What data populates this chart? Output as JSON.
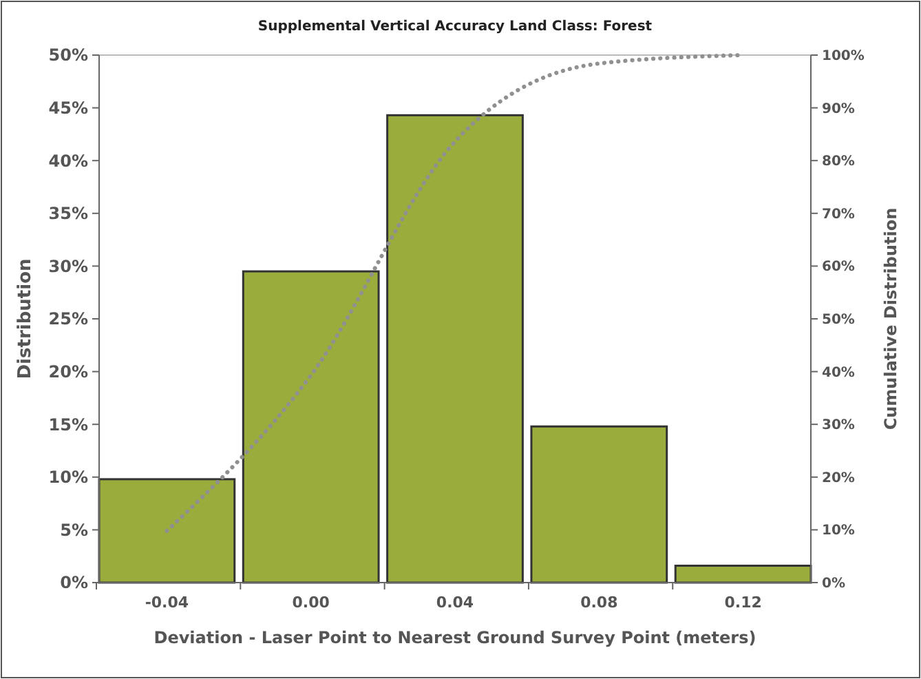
{
  "chart_data": {
    "type": "bar",
    "title": "Supplemental Vertical Accuracy Land Class: Forest",
    "xlabel": "Deviation - Laser Point to Nearest Ground Survey Point (meters)",
    "ylabel": "Distribution",
    "y2label": "Cumulative Distribution",
    "categories": [
      "-0.04",
      "0.00",
      "0.04",
      "0.08",
      "0.12"
    ],
    "series": [
      {
        "color": "#9aac3c",
        "values": [
          9.8,
          29.5,
          44.3,
          14.8,
          1.6
        ]
      },
      {
        "type": "line",
        "axis": "y2",
        "color": "#909090",
        "line_style": "dotted",
        "marker": "none",
        "values": [
          9.8,
          39.3,
          83.6,
          98.4,
          100
        ]
      }
    ],
    "ylim": [
      0,
      50
    ],
    "yticks": [
      {
        "value": 0,
        "label": "0%"
      },
      {
        "value": 5,
        "label": "5%"
      },
      {
        "value": 10,
        "label": "10%"
      },
      {
        "value": 15,
        "label": "15%"
      },
      {
        "value": 20,
        "label": "20%"
      },
      {
        "value": 25,
        "label": "25%"
      },
      {
        "value": 30,
        "label": "30%"
      },
      {
        "value": 35,
        "label": "35%"
      },
      {
        "value": 40,
        "label": "40%"
      },
      {
        "value": 45,
        "label": "45%"
      },
      {
        "value": 50,
        "label": "50%"
      }
    ],
    "y2lim": [
      0,
      100
    ],
    "y2ticks": [
      {
        "value": 0,
        "label": "0%"
      },
      {
        "value": 10,
        "label": "10%"
      },
      {
        "value": 20,
        "label": "20%"
      },
      {
        "value": 30,
        "label": "30%"
      },
      {
        "value": 40,
        "label": "40%"
      },
      {
        "value": 50,
        "label": "50%"
      },
      {
        "value": 60,
        "label": "60%"
      },
      {
        "value": 70,
        "label": "70%"
      },
      {
        "value": 80,
        "label": "80%"
      },
      {
        "value": 90,
        "label": "90%"
      },
      {
        "value": 100,
        "label": "100%"
      }
    ],
    "grid": false
  }
}
